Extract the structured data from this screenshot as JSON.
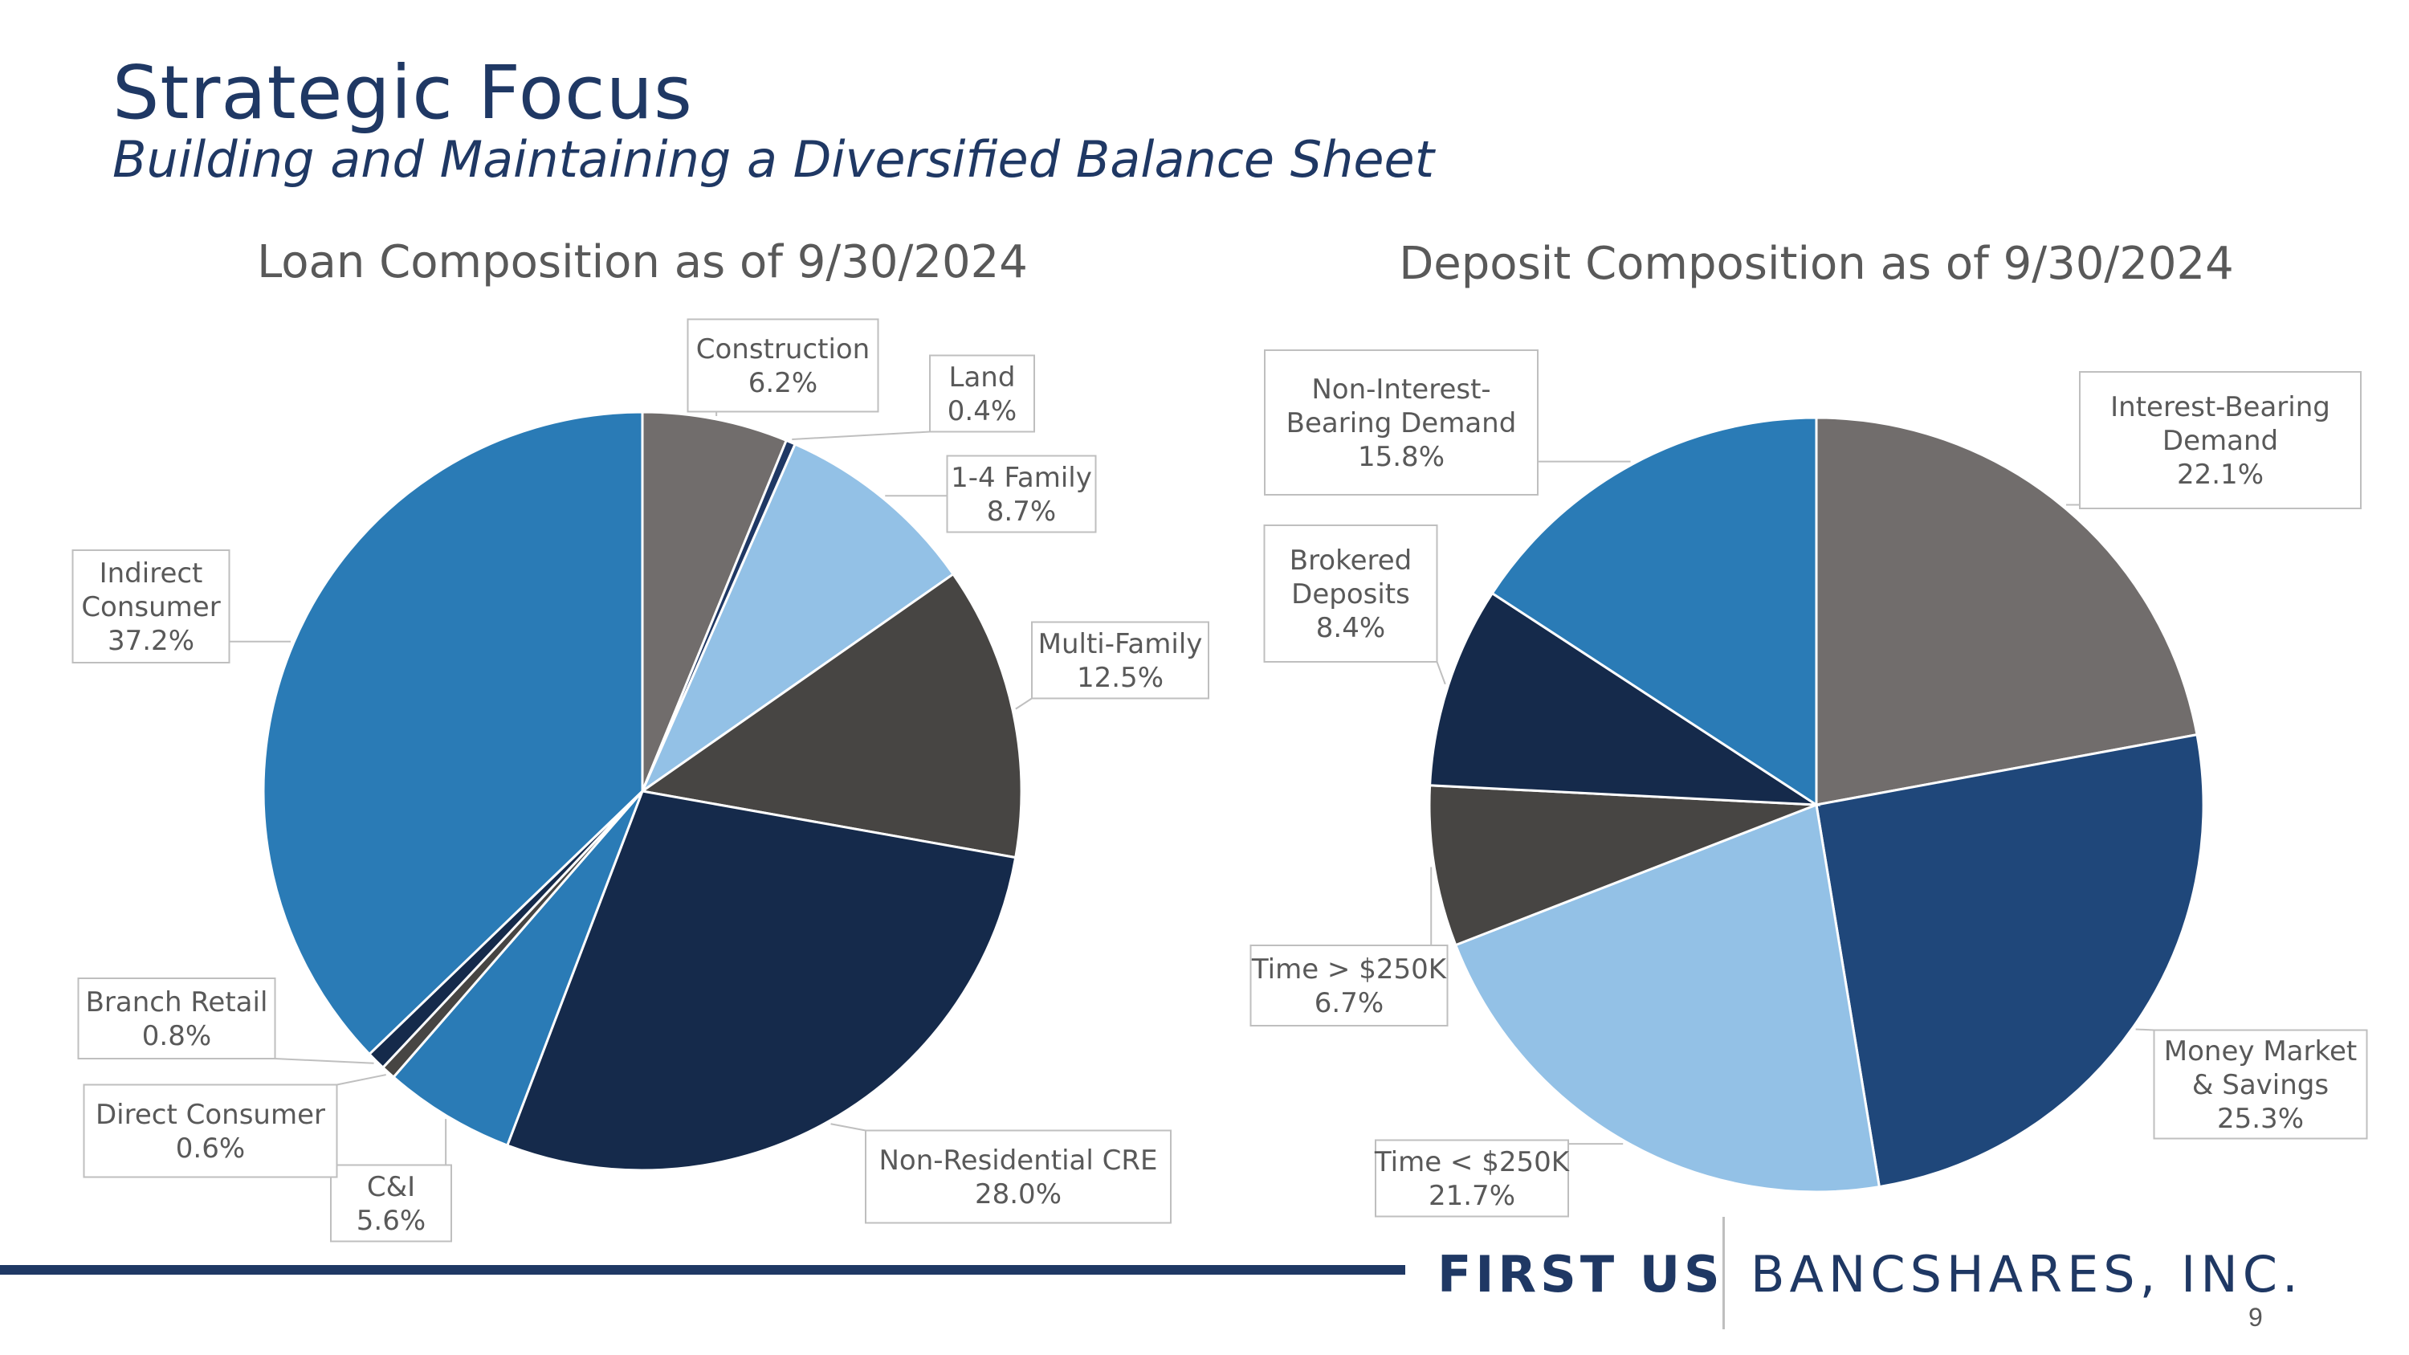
{
  "slide": {
    "title": "Strategic Focus",
    "subtitle": "Building and Maintaining a Diversified Balance Sheet",
    "page_number": "9"
  },
  "brand": {
    "name_bold": "FIRST US",
    "name_light": "BANCSHARES, INC."
  },
  "chart_data": [
    {
      "type": "pie",
      "title": "Loan Composition as of 9/30/2024",
      "slices": [
        {
          "label": "Construction",
          "value": 6.2,
          "value_label": "6.2%",
          "color": "#716d6c"
        },
        {
          "label": "Land",
          "value": 0.4,
          "value_label": "0.4%",
          "color": "#1f3864"
        },
        {
          "label": "1-4 Family",
          "value": 8.7,
          "value_label": "8.7%",
          "color": "#93c1e6"
        },
        {
          "label": "Multi-Family",
          "value": 12.5,
          "value_label": "12.5%",
          "color": "#474543"
        },
        {
          "label": "Non-Residential CRE",
          "value": 28.0,
          "value_label": "28.0%",
          "color": "#152a4b"
        },
        {
          "label": "C&I",
          "value": 5.6,
          "value_label": "5.6%",
          "color": "#2a7bb6"
        },
        {
          "label": "Direct Consumer",
          "value": 0.6,
          "value_label": "0.6%",
          "color": "#474543"
        },
        {
          "label": "Branch Retail",
          "value": 0.8,
          "value_label": "0.8%",
          "color": "#152a4b"
        },
        {
          "label": "Indirect Consumer",
          "value": 37.2,
          "value_label": "37.2%",
          "color": "#2a7bb6"
        }
      ]
    },
    {
      "type": "pie",
      "title": "Deposit Composition as of 9/30/2024",
      "slices": [
        {
          "label": "Interest-Bearing Demand",
          "value": 22.1,
          "value_label": "22.1%",
          "color": "#716d6c"
        },
        {
          "label": "Money Market & Savings",
          "value": 25.3,
          "value_label": "25.3%",
          "color": "#1f477a"
        },
        {
          "label": "Time < $250K",
          "value": 21.7,
          "value_label": "21.7%",
          "color": "#93c1e6"
        },
        {
          "label": "Time > $250K",
          "value": 6.7,
          "value_label": "6.7%",
          "color": "#474543"
        },
        {
          "label": "Brokered Deposits",
          "value": 8.4,
          "value_label": "8.4%",
          "color": "#152a4b"
        },
        {
          "label": "Non-Interest-Bearing Demand",
          "value": 15.8,
          "value_label": "15.8%",
          "color": "#2a7bb6"
        }
      ]
    }
  ]
}
